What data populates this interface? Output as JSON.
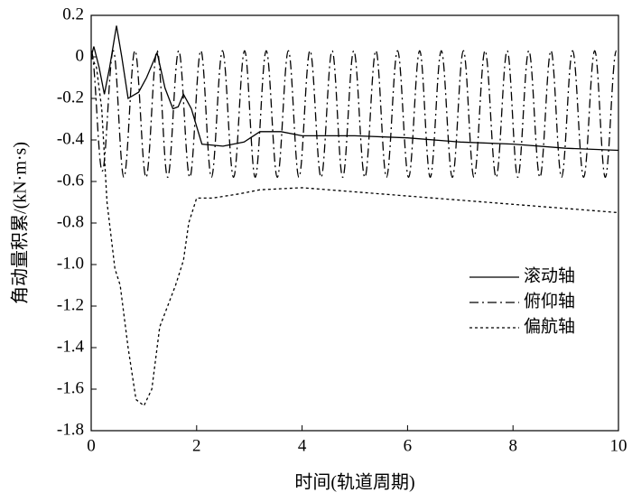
{
  "chart_data": {
    "type": "line",
    "x_label": "时间(轨道周期)",
    "y_label": "角动量积累/(kN·m·s)",
    "xlim": [
      0,
      10
    ],
    "xticks": [
      0,
      2,
      4,
      6,
      8,
      10
    ],
    "ylim": [
      -1.8,
      0.2
    ],
    "yticks": [
      -1.8,
      -1.6,
      -1.4,
      -1.2,
      {
        "value": -1,
        "label": "-1.0"
      },
      -0.8,
      -0.6,
      -0.4,
      -0.2,
      0,
      0.2
    ],
    "legend": "right",
    "series": [
      {
        "name": "滚动轴",
        "color": "#000000",
        "linestyle": "solid",
        "x": [
          0,
          0.05,
          0.15,
          0.25,
          0.35,
          0.48,
          0.58,
          0.7,
          0.9,
          1.05,
          1.25,
          1.4,
          1.55,
          1.65,
          1.75,
          1.9,
          2.1,
          2.5,
          2.9,
          3.2,
          3.6,
          4,
          5,
          6,
          7,
          8,
          9,
          10
        ],
        "values": [
          0,
          0.05,
          -0.05,
          -0.18,
          -0.05,
          0.15,
          0.0,
          -0.2,
          -0.17,
          -0.1,
          0.02,
          -0.15,
          -0.25,
          -0.24,
          -0.18,
          -0.25,
          -0.42,
          -0.43,
          -0.41,
          -0.36,
          -0.36,
          -0.38,
          -0.38,
          -0.39,
          -0.41,
          -0.42,
          -0.44,
          -0.45
        ]
      },
      {
        "name": "俯仰轴",
        "color": "#000000",
        "linestyle": "dashdot",
        "x": [
          0,
          0.21,
          0.42,
          0.62,
          0.83,
          1.04,
          1.25,
          1.45,
          1.66,
          1.87,
          2.08,
          2.28,
          2.49,
          2.7,
          2.91,
          3.11,
          3.32,
          3.53,
          3.74,
          3.94,
          4.15,
          4.36,
          4.57,
          4.77,
          4.98,
          5.19,
          5.4,
          5.6,
          5.81,
          6.02,
          6.23,
          6.43,
          6.64,
          6.85,
          7.06,
          7.26,
          7.47,
          7.68,
          7.89,
          8.09,
          8.3,
          8.51,
          8.72,
          8.92,
          9.13,
          9.34,
          9.55,
          9.75,
          9.96
        ],
        "values": [
          0.03,
          -0.55,
          0.03,
          -0.58,
          0.03,
          -0.58,
          0.03,
          -0.58,
          0.03,
          -0.58,
          0.03,
          -0.58,
          0.03,
          -0.58,
          0.03,
          -0.58,
          0.03,
          -0.58,
          0.03,
          -0.58,
          0.03,
          -0.58,
          0.03,
          -0.58,
          0.03,
          -0.58,
          0.03,
          -0.58,
          0.03,
          -0.58,
          0.03,
          -0.58,
          0.03,
          -0.58,
          0.03,
          -0.58,
          0.03,
          -0.58,
          0.03,
          -0.58,
          0.03,
          -0.58,
          0.03,
          -0.58,
          0.03,
          -0.58,
          0.03,
          -0.58,
          0.03
        ]
      },
      {
        "name": "偏航轴",
        "color": "#000000",
        "linestyle": "dotted",
        "x": [
          0,
          0.1,
          0.2,
          0.3,
          0.45,
          0.55,
          0.7,
          0.85,
          1.0,
          1.15,
          1.3,
          1.45,
          1.6,
          1.75,
          1.85,
          2.0,
          2.3,
          2.8,
          3.2,
          4,
          5,
          6,
          7,
          8,
          9,
          10
        ],
        "values": [
          0,
          -0.05,
          -0.25,
          -0.7,
          -1.02,
          -1.1,
          -1.4,
          -1.65,
          -1.68,
          -1.6,
          -1.3,
          -1.2,
          -1.1,
          -0.98,
          -0.8,
          -0.68,
          -0.68,
          -0.66,
          -0.64,
          -0.63,
          -0.65,
          -0.67,
          -0.69,
          -0.71,
          -0.73,
          -0.75
        ]
      }
    ]
  }
}
